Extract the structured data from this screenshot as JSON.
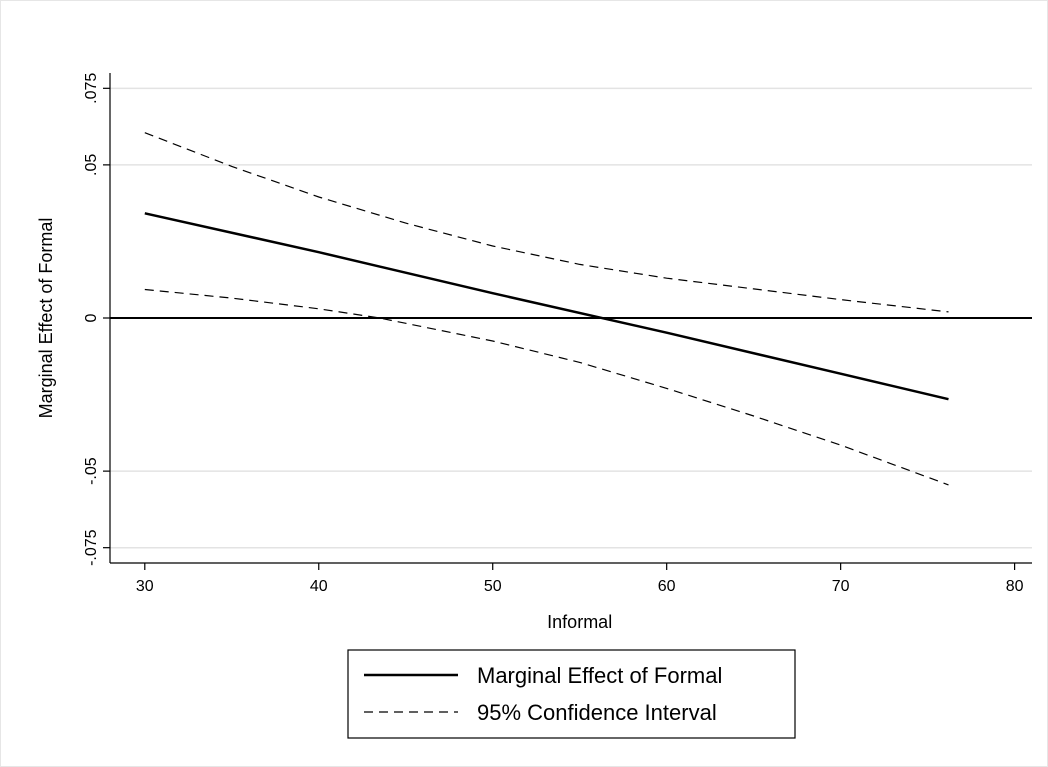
{
  "chart_data": {
    "type": "line",
    "title": "",
    "xlabel": "Informal",
    "ylabel": "Marginal Effect of Formal",
    "xlim": [
      28,
      81
    ],
    "ylim": [
      -0.08,
      0.08
    ],
    "xticks": [
      30,
      40,
      50,
      60,
      70,
      80
    ],
    "xtick_labels": [
      "30",
      "40",
      "50",
      "60",
      "70",
      "80"
    ],
    "yticks": [
      -0.075,
      -0.05,
      0,
      0.05,
      0.075
    ],
    "ytick_labels": [
      "-.075",
      "-.05",
      "0",
      ".05",
      ".075"
    ],
    "grid": true,
    "reference_line_y": 0,
    "legend_position": "bottom",
    "series": [
      {
        "name": "Marginal Effect of Formal",
        "style": "solid",
        "x": [
          30,
          40,
          50,
          60,
          70,
          76.2
        ],
        "y": [
          0.0342,
          0.0215,
          0.0081,
          -0.0048,
          -0.0182,
          -0.0265
        ]
      },
      {
        "name": "95% Confidence Interval",
        "style": "dashed",
        "x": [
          30,
          35,
          40,
          45,
          50,
          55,
          60,
          65,
          70,
          76.2
        ],
        "y": [
          0.0605,
          0.0495,
          0.0395,
          0.031,
          0.0235,
          0.0175,
          0.013,
          0.0095,
          0.006,
          0.002
        ]
      },
      {
        "name": "",
        "style": "dashed",
        "x": [
          30,
          35,
          40,
          43.5,
          50,
          55,
          60,
          65,
          70,
          76.2
        ],
        "y": [
          0.0093,
          0.0065,
          0.003,
          0.0,
          -0.0075,
          -0.0145,
          -0.023,
          -0.032,
          -0.0415,
          -0.0545
        ]
      }
    ],
    "legend": [
      "Marginal Effect of Formal",
      "95% Confidence Interval"
    ]
  },
  "colors": {
    "line": "#000000",
    "grid": "#e3e3e3",
    "zero_line": "#000000"
  }
}
